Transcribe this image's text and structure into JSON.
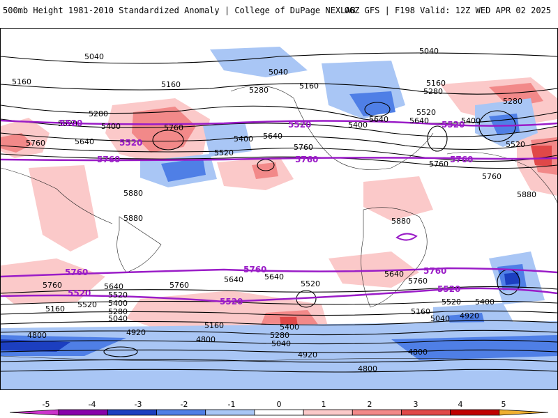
{
  "header": {
    "title": "500mb Height 1981-2010 Standardized Anomaly | College of DuPage NEXLAB",
    "run_info": "06Z GFS | F198 Valid: 12Z WED APR 02 2025"
  },
  "map": {
    "projection": "global cylindrical",
    "contour_color": "#000000",
    "reference_contour_color": "#9a1cc7",
    "height_labels": {
      "nh": [
        "5040",
        "5040",
        "5040",
        "5160",
        "5160",
        "5160",
        "5160",
        "5280",
        "5280",
        "5280",
        "5280",
        "5400",
        "5400",
        "5400",
        "5400",
        "5520",
        "5520",
        "5520",
        "5520",
        "5640",
        "5640",
        "5640",
        "5640",
        "5760",
        "5760",
        "5760",
        "5760",
        "5760",
        "5880",
        "5880",
        "5880",
        "5880"
      ],
      "sh": [
        "5760",
        "5760",
        "5760",
        "5640",
        "5640",
        "5640",
        "5640",
        "5520",
        "5520",
        "5520",
        "5520",
        "5400",
        "5400",
        "5400",
        "5280",
        "5280",
        "5160",
        "5160",
        "5160",
        "5040",
        "5040",
        "5040",
        "4920",
        "4920",
        "4920",
        "4800",
        "4800",
        "4800",
        "4800"
      ]
    },
    "reference_labels": {
      "nh": [
        "5520",
        "5520",
        "5520",
        "5520",
        "5760",
        "5760",
        "5760"
      ],
      "sh": [
        "5760",
        "5760",
        "5760",
        "5520",
        "5520",
        "5520"
      ]
    }
  },
  "colorbar": {
    "ticks": [
      "-5",
      "-4",
      "-3",
      "-2",
      "-1",
      "0",
      "1",
      "2",
      "3",
      "4",
      "5"
    ],
    "colors": [
      "#cc33cc",
      "#8800aa",
      "#1c3fc0",
      "#4f7fe6",
      "#a9c6f5",
      "#ffffff",
      "#fbc9c9",
      "#f28989",
      "#e04848",
      "#c00000",
      "#f0b030"
    ]
  }
}
